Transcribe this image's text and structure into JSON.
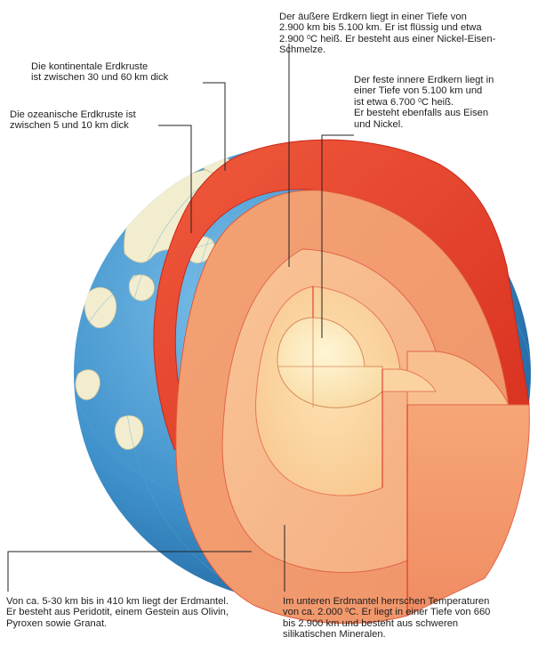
{
  "labels": {
    "outer_core": {
      "l1": "Der äußere Erdkern liegt in einer Tiefe von",
      "l2": "2.900 km bis  5.100 km. Er ist flüssig und etwa",
      "l3a": "2.900 ",
      "l3sup": "0",
      "l3b": "C heiß. Er besteht aus einer Nickel-Eisen-",
      "l4": "Schmelze."
    },
    "inner_core": {
      "l1": "Der feste innere Erdkern liegt in",
      "l2": "einer Tiefe von 5.100 km und",
      "l3a": "ist etwa 6.700 ",
      "l3sup": "0",
      "l3b": "C heiß.",
      "l4": "Er besteht ebenfalls aus Eisen",
      "l5": "und Nickel."
    },
    "continental_crust": {
      "l1": "Die kontinentale Erdkruste",
      "l2": "ist zwischen 30 und 60 km dick"
    },
    "oceanic_crust": {
      "l1": "Die ozeanische Erdkruste ist",
      "l2": "zwischen 5 und 10 km dick"
    },
    "upper_mantle": {
      "l1": "Von ca. 5-30 km bis in 410 km liegt der Erdmantel.",
      "l2": "Er besteht aus Peridotit, einem Gestein aus Olivin,",
      "l3": "Pyroxen sowie Granat."
    },
    "lower_mantle": {
      "l1": "Im unteren Erdmantel herrschen Temperaturen",
      "l2a": "von ca. 2.000 ",
      "l2sup": "0",
      "l2b": "C. Er liegt in einer Tiefe von 660",
      "l3": "bis 2.900 km und besteht aus schweren",
      "l4": "silikatischen Mineralen."
    }
  },
  "colors": {
    "ocean": "#3a8fc8",
    "land": "#f2edcf",
    "crust": "#e8402c",
    "upper_mantle": "#f5a377",
    "lower_mantle": "#f7bd8b",
    "outer_core": "#fad3a0",
    "inner_core": "#fde8b8",
    "edge": "#d8261a",
    "leader": "#222222"
  }
}
